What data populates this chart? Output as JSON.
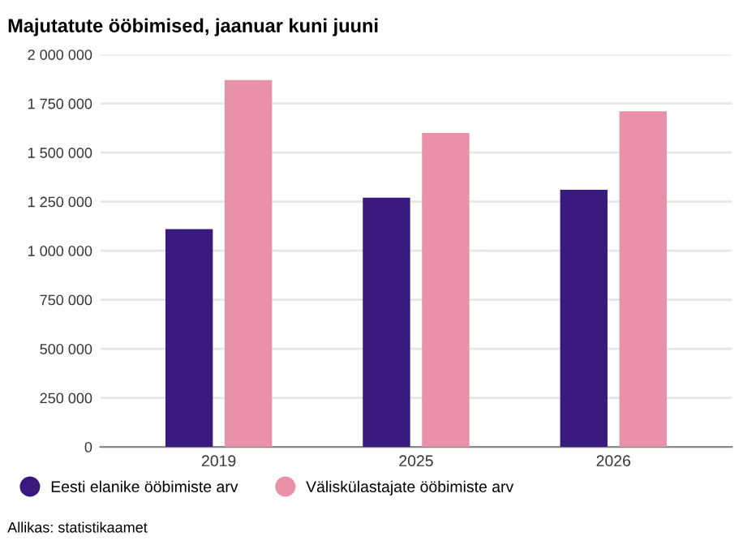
{
  "chart_data": {
    "type": "bar",
    "title": "Majutatute ööbimised, jaanuar kuni juuni",
    "categories": [
      "2019",
      "2025",
      "2026"
    ],
    "series": [
      {
        "name": "Eesti elanike ööbimiste arv",
        "color": "#3b1a7e",
        "values": [
          1110000,
          1270000,
          1310000
        ]
      },
      {
        "name": "Väliskülastajate ööbimiste arv",
        "color": "#e891a8",
        "values": [
          1870000,
          1600000,
          1710000
        ]
      }
    ],
    "ylim": [
      0,
      2000000
    ],
    "yticks": [
      0,
      {
        "value": 250000,
        "label": "250 000"
      },
      {
        "value": 500000,
        "label": "500 000"
      },
      {
        "value": 750000,
        "label": "750 000"
      },
      {
        "value": 1000000,
        "label": "1 000 000"
      },
      {
        "value": 1250000,
        "label": "1 250 000"
      },
      {
        "value": 1500000,
        "label": "1 500 000"
      },
      {
        "value": 1750000,
        "label": "1 750 000"
      },
      {
        "value": 2000000,
        "label": "2 000 000"
      }
    ],
    "grid": "y",
    "legend": "bottom",
    "annotations": [
      "Allikas: statistikaamet"
    ]
  }
}
